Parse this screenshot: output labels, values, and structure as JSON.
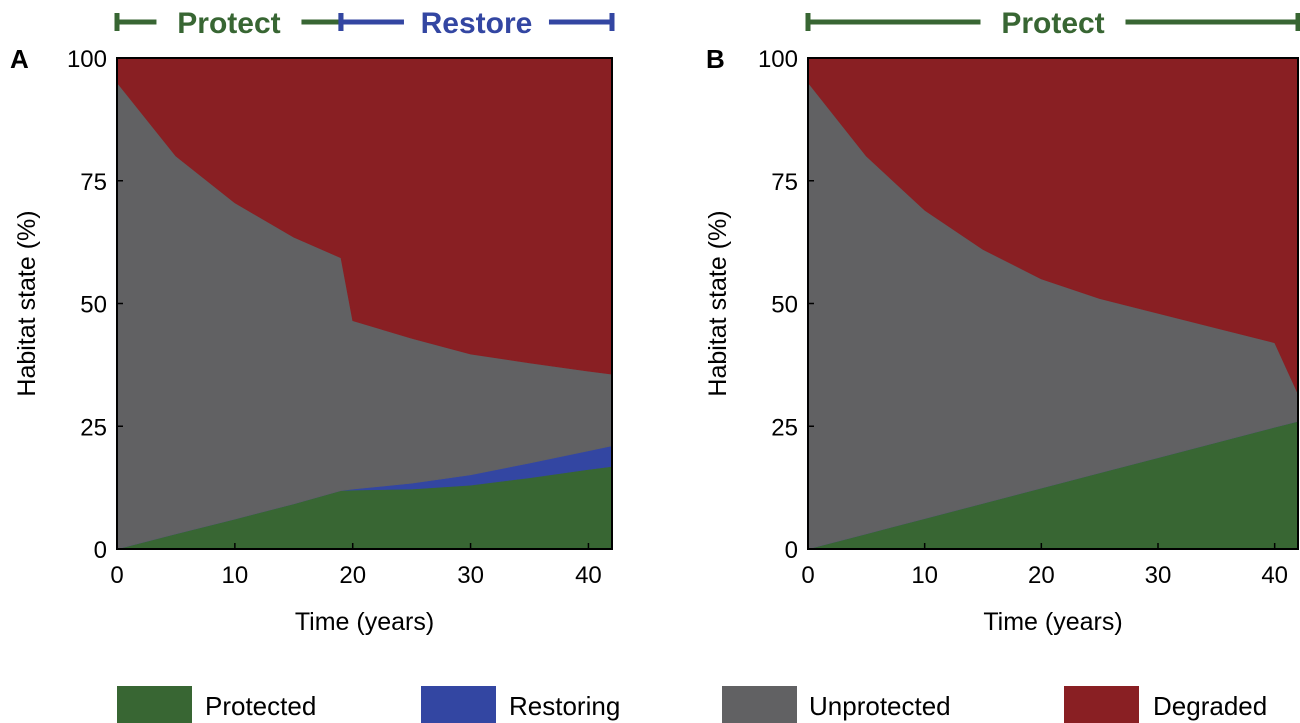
{
  "colors": {
    "Protected": "#386633",
    "Restoring": "#3346a2",
    "Unprotected": "#616163",
    "Degraded": "#891f23",
    "protect_phase": "#386633",
    "restore_phase": "#3346a2"
  },
  "legend": {
    "placement": "bottom",
    "items": [
      {
        "name": "Protected",
        "color": "#386633"
      },
      {
        "name": "Restoring",
        "color": "#3346a2"
      },
      {
        "name": "Unprotected",
        "color": "#616163"
      },
      {
        "name": "Degraded",
        "color": "#891f23"
      }
    ]
  },
  "chart_data": [
    {
      "type": "area",
      "stacked": true,
      "panel": "A",
      "xlabel": "Time (years)",
      "ylabel": "Habitat state (%)",
      "xlim": [
        0,
        42
      ],
      "ylim": [
        0,
        100
      ],
      "xticks": [
        0,
        10,
        20,
        30,
        40
      ],
      "yticks": [
        0,
        25,
        50,
        75,
        100
      ],
      "grid": false,
      "phases": [
        {
          "label": "Protect",
          "start": 0,
          "end": 19,
          "color": "#386633"
        },
        {
          "label": "Restore",
          "start": 19,
          "end": 42,
          "color": "#3346a2"
        }
      ],
      "x": [
        0,
        5,
        10,
        15,
        19,
        20,
        25,
        30,
        35,
        40,
        42
      ],
      "series": [
        {
          "name": "Protected",
          "values": [
            0,
            3.1,
            6.1,
            9.2,
            11.9,
            12,
            12.2,
            13,
            14.5,
            16.2,
            16.8
          ]
        },
        {
          "name": "Restoring",
          "values": [
            0,
            0,
            0,
            0,
            0,
            0.2,
            1.2,
            2.1,
            3,
            3.8,
            4.2
          ]
        },
        {
          "name": "Unprotected",
          "values": [
            95,
            76.9,
            64.4,
            54.3,
            47.4,
            34.3,
            29.5,
            24.6,
            20.4,
            16.2,
            14.6
          ]
        },
        {
          "name": "Degraded",
          "values": [
            5,
            20,
            29.5,
            36.5,
            40.7,
            53.5,
            57.1,
            60.3,
            62.1,
            63.8,
            64.4
          ]
        }
      ]
    },
    {
      "type": "area",
      "stacked": true,
      "panel": "B",
      "xlabel": "Time (years)",
      "ylabel": "Habitat state (%)",
      "xlim": [
        0,
        42
      ],
      "ylim": [
        0,
        100
      ],
      "xticks": [
        0,
        10,
        20,
        30,
        40
      ],
      "yticks": [
        0,
        25,
        50,
        75,
        100
      ],
      "grid": false,
      "phases": [
        {
          "label": "Protect",
          "start": 0,
          "end": 42,
          "color": "#386633"
        }
      ],
      "x": [
        0,
        5,
        10,
        15,
        20,
        25,
        30,
        35,
        40,
        42
      ],
      "series": [
        {
          "name": "Protected",
          "values": [
            0,
            3.1,
            6.2,
            9.3,
            12.4,
            15.5,
            18.6,
            21.7,
            24.8,
            26
          ]
        },
        {
          "name": "Restoring",
          "values": [
            0,
            0,
            0,
            0,
            0,
            0,
            0,
            0,
            0,
            0
          ]
        },
        {
          "name": "Unprotected",
          "values": [
            95,
            76.9,
            62.8,
            51.7,
            42.6,
            35.5,
            29.4,
            23.3,
            17.2,
            5.6
          ]
        },
        {
          "name": "Degraded",
          "values": [
            5,
            20,
            31,
            39,
            45,
            49,
            52,
            55,
            58,
            68.4
          ]
        }
      ]
    }
  ]
}
